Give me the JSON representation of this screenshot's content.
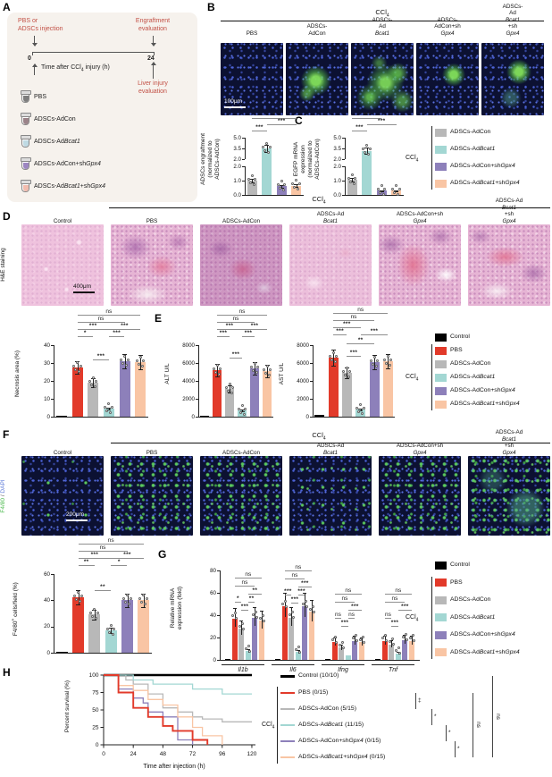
{
  "figure": {
    "description": "Multi-panel figure: ADSCs-AdBcat1 engraftment protects against CCl4 liver injury via Gpx4"
  },
  "groups": [
    {
      "key": "control",
      "label": "Control",
      "color": "#000000"
    },
    {
      "key": "pbs",
      "label": "PBS",
      "color": "#e23a2a"
    },
    {
      "key": "adcon",
      "label": "ADSCs-AdCon",
      "color": "#b8b8b8"
    },
    {
      "key": "adbcat1",
      "label": "ADSCs-AdBcat1",
      "color": "#a3d7d3"
    },
    {
      "key": "adcon-shgpx4",
      "label": "ADSCs-AdCon+shGpx4",
      "color": "#8d80ba"
    },
    {
      "key": "adbcat1-shgpx4",
      "label": "ADSCs-AdBcat1+shGpx4",
      "color": "#f9c5a4"
    }
  ],
  "panel_a": {
    "label": "A",
    "injection": [
      "PBS or",
      "ADSCs injection"
    ],
    "engraftment": [
      "Engraftment",
      "evaluation"
    ],
    "liver": [
      "Liver injury",
      "evaluation"
    ],
    "timeline_label": "Time after CCl4 injury (h)",
    "t0": "0",
    "t1": "24",
    "tubes": [
      {
        "label": "PBS",
        "color": "#7d7d7d"
      },
      {
        "label": "ADSCs-AdCon",
        "color": "#9b8389"
      },
      {
        "label": "ADSCs-AdBcat1",
        "color": "#bfdae3"
      },
      {
        "label": "ADSCs-AdCon+shGpx4",
        "color": "#9d87c1"
      },
      {
        "label": "ADSCs-AdBcat1+shGpx4",
        "color": "#f2bcae"
      }
    ]
  },
  "panel_b": {
    "label": "B",
    "header": "CCl4",
    "scalebar": "100μm",
    "images": [
      {
        "lines": [
          "PBS"
        ],
        "ov": "ov-none"
      },
      {
        "lines": [
          "ADSCs-",
          "AdCon"
        ],
        "ov": "ov-blob-m"
      },
      {
        "lines": [
          "ADSCs-",
          "AdBcat1"
        ],
        "ov": "ov-blob-l"
      },
      {
        "lines": [
          "ADSCs-",
          "AdCon+shGpx4"
        ],
        "ov": "ov-blob-s"
      },
      {
        "lines": [
          "ADSCs-",
          "AdBcat1+shGpx4"
        ],
        "ov": "ov-blob-s2"
      }
    ],
    "chart": {
      "type": "bar",
      "ylabel": [
        "ADSCs engraftment",
        "(normalized to",
        "ADSCs-AdCon)"
      ],
      "broken": {
        "lower_max": 2,
        "lower_ticks": [
          "0.0",
          "1.0",
          "2.0"
        ],
        "upper_min": 2,
        "upper_max": 5,
        "upper_ticks": [
          "2.0",
          "3.5",
          "5.0"
        ]
      },
      "bars": [
        {
          "g": 2,
          "v": 1.0
        },
        {
          "g": 3,
          "v": 3.5
        },
        {
          "g": 4,
          "v": 0.6
        },
        {
          "g": 5,
          "v": 0.65
        }
      ],
      "sig": [
        [
          0,
          3,
          "*",
          -22
        ],
        [
          1,
          3,
          "***",
          -15
        ],
        [
          0,
          1,
          "***",
          -8
        ]
      ]
    }
  },
  "panel_c": {
    "label": "C",
    "chart": {
      "type": "bar",
      "ylabel": [
        "EGFP mRNA",
        "expression",
        "(normalized to",
        "ADSCs-AdCon)"
      ],
      "broken": {
        "lower_max": 2,
        "lower_ticks": [
          "0.0",
          "1.0",
          "2.0"
        ],
        "upper_min": 2,
        "upper_max": 5,
        "upper_ticks": [
          "2.0",
          "3.5",
          "5.0"
        ]
      },
      "bars": [
        {
          "g": 2,
          "v": 1.05
        },
        {
          "g": 3,
          "v": 3.2
        },
        {
          "g": 4,
          "v": 0.3
        },
        {
          "g": 5,
          "v": 0.3
        }
      ],
      "sig": [
        [
          0,
          2,
          "***",
          -22
        ],
        [
          1,
          3,
          "***",
          -15
        ],
        [
          0,
          1,
          "***",
          -8
        ]
      ]
    }
  },
  "legend_bc": {
    "bracket_label": "CCl4",
    "items": [
      2,
      3,
      4,
      5
    ]
  },
  "panel_d": {
    "label": "D",
    "side_label": "H&E staining",
    "header": "CCl4",
    "scalebar": "400μm",
    "images": [
      {
        "lines": [
          "Control"
        ],
        "ov": "ov-he0"
      },
      {
        "lines": [
          "PBS"
        ],
        "ov": "ov-he1"
      },
      {
        "lines": [
          "ADSCs-AdCon"
        ],
        "ov": "ov-he2"
      },
      {
        "lines": [
          "ADSCs-AdBcat1"
        ],
        "ov": "ov-he3"
      },
      {
        "lines": [
          "ADSCs-AdCon+shGpx4"
        ],
        "ov": "ov-he4"
      },
      {
        "lines": [
          "ADSCs-AdBcat1+shGpx4"
        ],
        "ov": "ov-he5"
      }
    ],
    "chart": {
      "type": "bar",
      "ylabel": [
        "Necrosis area (%)"
      ],
      "ymax": 40,
      "yticks": [
        "0",
        "10",
        "20",
        "30",
        "40"
      ],
      "bars": [
        {
          "g": 0,
          "v": 0.4
        },
        {
          "g": 1,
          "v": 27.5
        },
        {
          "g": 2,
          "v": 19
        },
        {
          "g": 3,
          "v": 4.5
        },
        {
          "g": 4,
          "v": 31
        },
        {
          "g": 5,
          "v": 30.5
        }
      ],
      "sig": [
        [
          1,
          5,
          "ns",
          -34
        ],
        [
          1,
          4,
          "ns",
          -26
        ],
        [
          1,
          3,
          "***",
          -18
        ],
        [
          3,
          5,
          "***",
          -18
        ],
        [
          1,
          2,
          "*",
          -10
        ],
        [
          3,
          4,
          "***",
          -10
        ],
        [
          2,
          3,
          "***",
          16
        ]
      ]
    }
  },
  "panel_e": {
    "label": "E",
    "alt": {
      "type": "bar",
      "ylabel": [
        "ALT U/L"
      ],
      "ymax": 8000,
      "yticks": [
        "0",
        "2000",
        "4000",
        "6000",
        "8000"
      ],
      "bars": [
        {
          "g": 0,
          "v": 90
        },
        {
          "g": 1,
          "v": 5200
        },
        {
          "g": 2,
          "v": 3100
        },
        {
          "g": 3,
          "v": 700
        },
        {
          "g": 4,
          "v": 5400
        },
        {
          "g": 5,
          "v": 5100
        }
      ],
      "sig": [
        [
          1,
          5,
          "ns",
          -34
        ],
        [
          1,
          4,
          "ns",
          -26
        ],
        [
          1,
          3,
          "***",
          -18
        ],
        [
          3,
          5,
          "***",
          -18
        ],
        [
          1,
          2,
          "***",
          -10
        ],
        [
          3,
          4,
          "***",
          -10
        ],
        [
          2,
          3,
          "***",
          14
        ]
      ]
    },
    "ast": {
      "type": "bar",
      "ylabel": [
        "AST U/L"
      ],
      "ymax": 8000,
      "yticks": [
        "0",
        "2000",
        "4000",
        "6000",
        "8000"
      ],
      "bars": [
        {
          "g": 0,
          "v": 180
        },
        {
          "g": 1,
          "v": 6600
        },
        {
          "g": 2,
          "v": 4900
        },
        {
          "g": 3,
          "v": 800
        },
        {
          "g": 4,
          "v": 6100
        },
        {
          "g": 5,
          "v": 6200
        }
      ],
      "sig": [
        [
          1,
          5,
          "ns",
          -36
        ],
        [
          1,
          4,
          "ns",
          -28
        ],
        [
          1,
          3,
          "***",
          -20
        ],
        [
          1,
          2,
          "***",
          -12
        ],
        [
          3,
          5,
          "***",
          -12
        ],
        [
          2,
          4,
          "**",
          -2
        ],
        [
          2,
          3,
          "***",
          12
        ]
      ]
    }
  },
  "legend_e": {
    "bracket_label": "CCl4",
    "items": [
      0,
      1,
      2,
      3,
      4,
      5
    ]
  },
  "panel_f": {
    "label": "F",
    "side_label": [
      {
        "t": "F4/80",
        "c": "#4bb94d"
      },
      {
        "t": " / ",
        "c": "#555555"
      },
      {
        "t": "DAPI",
        "c": "#5b79d8"
      }
    ],
    "header": "CCl4",
    "scalebar": "200μm",
    "images": [
      {
        "lines": [
          "Control"
        ],
        "ov": "ov-spk-lo"
      },
      {
        "lines": [
          "PBS"
        ],
        "ov": "ov-spk-hi"
      },
      {
        "lines": [
          "ADSCs-AdCon"
        ],
        "ov": "ov-spk-hi"
      },
      {
        "lines": [
          "ADSCs-AdBcat1"
        ],
        "ov": "ov-spk-md"
      },
      {
        "lines": [
          "ADSCs-AdCon+shGpx4"
        ],
        "ov": "ov-spk-hi"
      },
      {
        "lines": [
          "ADSCs-AdBcat1+shGpx4"
        ],
        "ov": "ov-spk-xhi"
      }
    ],
    "chart": {
      "type": "bar",
      "ylabel": [
        "F4/80+ cells/field (%)"
      ],
      "ymax": 60,
      "yticks": [
        "0",
        "20",
        "40",
        "60"
      ],
      "bars": [
        {
          "g": 0,
          "v": 1
        },
        {
          "g": 1,
          "v": 42
        },
        {
          "g": 2,
          "v": 29
        },
        {
          "g": 3,
          "v": 17
        },
        {
          "g": 4,
          "v": 40
        },
        {
          "g": 5,
          "v": 40
        }
      ],
      "sig": [
        [
          1,
          5,
          "ns",
          -34
        ],
        [
          1,
          4,
          "ns",
          -26
        ],
        [
          1,
          3,
          "***",
          -18
        ],
        [
          3,
          5,
          "***",
          -18
        ],
        [
          1,
          2,
          "**",
          -10
        ],
        [
          3,
          4,
          "*",
          -10
        ],
        [
          2,
          3,
          "**",
          18
        ]
      ]
    }
  },
  "panel_g": {
    "label": "G",
    "type": "grouped-bar",
    "ylabel": [
      "Relative mRNA",
      "expression (fold)"
    ],
    "ymax": 80,
    "yticks": [
      "0",
      "20",
      "40",
      "60",
      "80"
    ],
    "genes": [
      {
        "name": "Il1b",
        "values": [
          1,
          37,
          28,
          8,
          38,
          35
        ],
        "sig": [
          [
            1,
            5,
            "ns",
            8
          ],
          [
            1,
            4,
            "ns",
            17
          ],
          [
            3,
            5,
            "**",
            26
          ],
          [
            1,
            2,
            "*",
            35
          ],
          [
            3,
            4,
            "**",
            35
          ],
          [
            2,
            3,
            "***",
            44
          ]
        ]
      },
      {
        "name": "Il6",
        "values": [
          1,
          48,
          38,
          7,
          48,
          43
        ],
        "sig": [
          [
            1,
            5,
            "ns",
            0
          ],
          [
            1,
            4,
            "ns",
            9
          ],
          [
            3,
            5,
            "***",
            18
          ],
          [
            1,
            2,
            "***",
            27
          ],
          [
            3,
            4,
            "***",
            27
          ],
          [
            2,
            3,
            "***",
            36
          ]
        ]
      },
      {
        "name": "Ifng",
        "values": [
          1,
          16,
          11,
          4,
          17,
          16
        ],
        "sig": [
          [
            1,
            5,
            "ns",
            26
          ],
          [
            1,
            4,
            "ns",
            35
          ],
          [
            3,
            5,
            "***",
            44
          ],
          [
            1,
            2,
            "ns",
            53
          ],
          [
            3,
            4,
            "ns",
            53
          ],
          [
            2,
            3,
            "***",
            62
          ]
        ]
      },
      {
        "name": "Tnf",
        "values": [
          1,
          17,
          14,
          6,
          18,
          17
        ],
        "sig": [
          [
            1,
            5,
            "ns",
            26
          ],
          [
            1,
            4,
            "ns",
            35
          ],
          [
            3,
            5,
            "***",
            44
          ],
          [
            1,
            2,
            "ns",
            53
          ],
          [
            2,
            3,
            "***",
            62
          ]
        ]
      }
    ]
  },
  "legend_g": {
    "bracket_label": "CCl4",
    "items": [
      0,
      1,
      2,
      3,
      4,
      5
    ]
  },
  "panel_h": {
    "label": "H",
    "type": "survival",
    "ylabel": "Percent survival (%)",
    "xlabel": "Time after injection (h)",
    "yticks": [
      0,
      25,
      50,
      75,
      100
    ],
    "xticks": [
      0,
      24,
      48,
      72,
      96,
      120
    ],
    "bracket_label": "CCl4",
    "series": [
      {
        "g": 0,
        "label": "Control (10/10)",
        "steps": [],
        "end": 120
      },
      {
        "g": 1,
        "label": "PBS (0/15)",
        "steps": [
          [
            12,
            75
          ],
          [
            24,
            53
          ],
          [
            36,
            40
          ],
          [
            48,
            27
          ],
          [
            56,
            20
          ],
          [
            72,
            7
          ],
          [
            84,
            0
          ]
        ],
        "end": 84
      },
      {
        "g": 2,
        "label": "ADSCs-AdCon (5/15)",
        "steps": [
          [
            18,
            93
          ],
          [
            24,
            87
          ],
          [
            36,
            73
          ],
          [
            48,
            53
          ],
          [
            60,
            47
          ],
          [
            72,
            40
          ],
          [
            80,
            37
          ],
          [
            96,
            33
          ]
        ],
        "end": 120
      },
      {
        "g": 3,
        "label": "ADSCs-AdBcat1 (11/15)",
        "steps": [
          [
            24,
            93
          ],
          [
            40,
            87
          ],
          [
            72,
            80
          ],
          [
            96,
            73
          ]
        ],
        "end": 120
      },
      {
        "g": 4,
        "label": "ADSCs-AdCon+shGpx4 (0/15)",
        "steps": [
          [
            12,
            80
          ],
          [
            24,
            67
          ],
          [
            32,
            60
          ],
          [
            36,
            47
          ],
          [
            48,
            40
          ],
          [
            60,
            7
          ],
          [
            72,
            0
          ]
        ],
        "end": 72
      },
      {
        "g": 5,
        "label": "ADSCs-AdBcat1+shGpx4 (0/15)",
        "steps": [
          [
            12,
            85
          ],
          [
            24,
            78
          ],
          [
            36,
            65
          ],
          [
            48,
            57
          ],
          [
            60,
            40
          ],
          [
            72,
            25
          ],
          [
            80,
            13
          ],
          [
            96,
            0
          ]
        ],
        "end": 96
      }
    ],
    "sig_brackets": [
      [
        1,
        2,
        "‡",
        172
      ],
      [
        2,
        3,
        "*",
        190
      ],
      [
        3,
        4,
        "*",
        206
      ],
      [
        4,
        5,
        "*",
        216
      ],
      [
        1,
        5,
        "ns",
        236
      ],
      [
        0,
        5,
        "ns",
        258
      ]
    ]
  }
}
